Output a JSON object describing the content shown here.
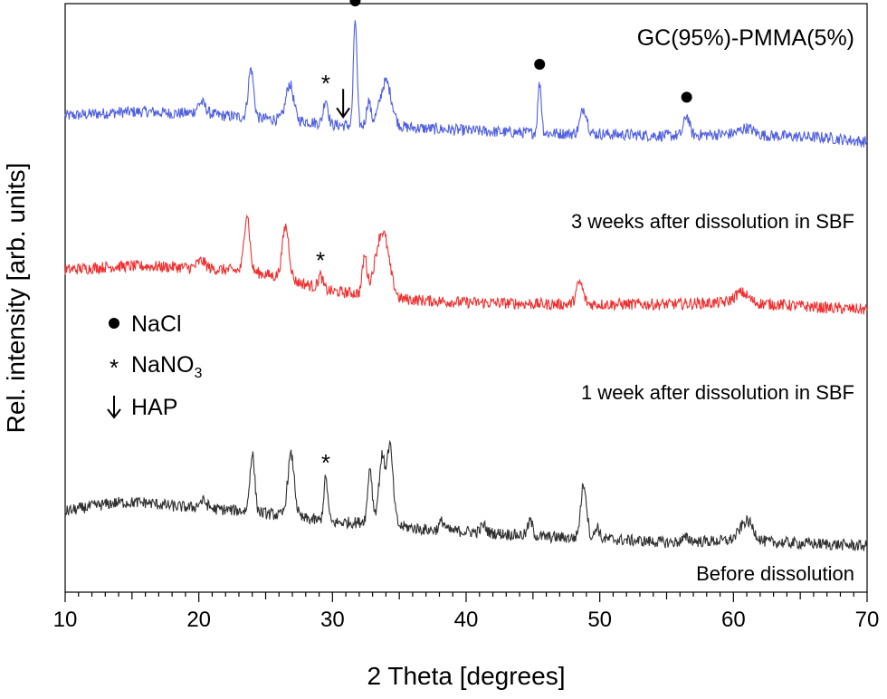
{
  "chart_data": {
    "type": "line",
    "title": "GC(95%)-PMMA(5%)",
    "xlabel": "2 Theta [degrees]",
    "ylabel": "Rel. intensity [arb. units]",
    "xlim": [
      10,
      70
    ],
    "xticks": [
      10,
      20,
      30,
      40,
      50,
      60,
      70
    ],
    "y_axis_tick_labels": false,
    "grid": false,
    "legend": {
      "placement": "center-left",
      "entries": [
        {
          "marker": "dot",
          "label": "NaCl"
        },
        {
          "marker": "asterisk",
          "label": "NaNO",
          "subscript": "3"
        },
        {
          "marker": "arrow-down",
          "label": "HAP"
        }
      ]
    },
    "series": [
      {
        "label": "3 weeks after dissolution in SBF",
        "color": "#5060e0",
        "baseline": [
          [
            10,
            0.5
          ],
          [
            12,
            0.55
          ],
          [
            14,
            0.6
          ],
          [
            16,
            0.62
          ],
          [
            18,
            0.57
          ],
          [
            20,
            0.58
          ],
          [
            22,
            0.5
          ],
          [
            24,
            0.45
          ],
          [
            26,
            0.4
          ],
          [
            28,
            0.35
          ],
          [
            30,
            0.25
          ],
          [
            32,
            0.22
          ],
          [
            34,
            0.35
          ],
          [
            35,
            0.2
          ],
          [
            37,
            0.15
          ],
          [
            40,
            0.1
          ],
          [
            43,
            0.05
          ],
          [
            46,
            0.02
          ],
          [
            50,
            0.0
          ],
          [
            55,
            -0.05
          ],
          [
            60,
            0.0
          ],
          [
            63,
            -0.05
          ],
          [
            67,
            -0.1
          ],
          [
            70,
            -0.22
          ]
        ],
        "peaks": [
          {
            "x": 20.2,
            "h": 0.3,
            "w": 0.3
          },
          {
            "x": 23.9,
            "h": 1.35,
            "w": 0.2
          },
          {
            "x": 26.8,
            "h": 1.0,
            "w": 0.28
          },
          {
            "x": 29.5,
            "h": 0.7,
            "w": 0.17
          },
          {
            "x": 31.7,
            "h": 2.95,
            "w": 0.13
          },
          {
            "x": 32.7,
            "h": 0.65,
            "w": 0.15
          },
          {
            "x": 34.0,
            "h": 1.1,
            "w": 0.42
          },
          {
            "x": 45.5,
            "h": 1.4,
            "w": 0.13
          },
          {
            "x": 48.8,
            "h": 0.7,
            "w": 0.25
          },
          {
            "x": 56.5,
            "h": 0.55,
            "w": 0.2
          },
          {
            "x": 61.0,
            "h": 0.18,
            "w": 0.5
          }
        ],
        "markers": [
          {
            "symbol": "dot",
            "x": 31.7
          },
          {
            "symbol": "asterisk",
            "x": 29.5
          },
          {
            "symbol": "arrow-down",
            "x": 30.8
          },
          {
            "symbol": "dot",
            "x": 45.5
          },
          {
            "symbol": "dot",
            "x": 56.5
          }
        ]
      },
      {
        "label": "1 week after dissolution in SBF",
        "color": "#f03030",
        "baseline": [
          [
            10,
            0.5
          ],
          [
            12,
            0.55
          ],
          [
            14,
            0.6
          ],
          [
            16,
            0.6
          ],
          [
            18,
            0.58
          ],
          [
            20,
            0.55
          ],
          [
            22,
            0.5
          ],
          [
            24,
            0.45
          ],
          [
            26,
            0.3
          ],
          [
            28,
            0.1
          ],
          [
            30,
            -0.1
          ],
          [
            32,
            -0.15
          ],
          [
            34,
            0.2
          ],
          [
            35,
            -0.3
          ],
          [
            37,
            -0.35
          ],
          [
            40,
            -0.4
          ],
          [
            43,
            -0.42
          ],
          [
            46,
            -0.45
          ],
          [
            50,
            -0.45
          ],
          [
            55,
            -0.45
          ],
          [
            60,
            -0.4
          ],
          [
            63,
            -0.45
          ],
          [
            67,
            -0.55
          ],
          [
            70,
            -0.6
          ]
        ],
        "peaks": [
          {
            "x": 20.2,
            "h": 0.2,
            "w": 0.3
          },
          {
            "x": 23.6,
            "h": 1.6,
            "w": 0.2
          },
          {
            "x": 26.5,
            "h": 1.45,
            "w": 0.25
          },
          {
            "x": 29.1,
            "h": 0.35,
            "w": 0.17
          },
          {
            "x": 32.4,
            "h": 0.95,
            "w": 0.16
          },
          {
            "x": 33.7,
            "h": 1.4,
            "w": 0.45
          },
          {
            "x": 48.5,
            "h": 0.6,
            "w": 0.25
          },
          {
            "x": 60.6,
            "h": 0.28,
            "w": 0.5
          }
        ],
        "markers": [
          {
            "symbol": "asterisk",
            "x": 29.1
          }
        ]
      },
      {
        "label": "Before dissolution",
        "color": "#303030",
        "baseline": [
          [
            10,
            0.0
          ],
          [
            12,
            0.15
          ],
          [
            14,
            0.25
          ],
          [
            16,
            0.25
          ],
          [
            18,
            0.15
          ],
          [
            20,
            0.1
          ],
          [
            22,
            0.05
          ],
          [
            24,
            0.0
          ],
          [
            26,
            -0.1
          ],
          [
            28,
            -0.2
          ],
          [
            30,
            -0.3
          ],
          [
            32,
            -0.3
          ],
          [
            34,
            0.05
          ],
          [
            35,
            -0.4
          ],
          [
            37,
            -0.5
          ],
          [
            40,
            -0.55
          ],
          [
            43,
            -0.62
          ],
          [
            46,
            -0.7
          ],
          [
            50,
            -0.75
          ],
          [
            55,
            -0.85
          ],
          [
            60,
            -0.8
          ],
          [
            63,
            -0.85
          ],
          [
            67,
            -0.9
          ],
          [
            70,
            -0.95
          ]
        ],
        "peaks": [
          {
            "x": 20.3,
            "h": 0.2,
            "w": 0.3
          },
          {
            "x": 24.0,
            "h": 1.6,
            "w": 0.18
          },
          {
            "x": 26.9,
            "h": 1.7,
            "w": 0.25
          },
          {
            "x": 29.5,
            "h": 1.2,
            "w": 0.15
          },
          {
            "x": 32.8,
            "h": 1.4,
            "w": 0.15
          },
          {
            "x": 33.7,
            "h": 1.5,
            "w": 0.2
          },
          {
            "x": 34.3,
            "h": 1.9,
            "w": 0.22
          },
          {
            "x": 38.2,
            "h": 0.25,
            "w": 0.2
          },
          {
            "x": 41.3,
            "h": 0.2,
            "w": 0.2
          },
          {
            "x": 44.8,
            "h": 0.4,
            "w": 0.18
          },
          {
            "x": 48.8,
            "h": 1.5,
            "w": 0.22
          },
          {
            "x": 49.8,
            "h": 0.35,
            "w": 0.15
          },
          {
            "x": 56.5,
            "h": 0.1,
            "w": 0.3
          },
          {
            "x": 61.0,
            "h": 0.55,
            "w": 0.5
          }
        ],
        "markers": [
          {
            "symbol": "asterisk",
            "x": 29.5
          }
        ]
      }
    ]
  }
}
